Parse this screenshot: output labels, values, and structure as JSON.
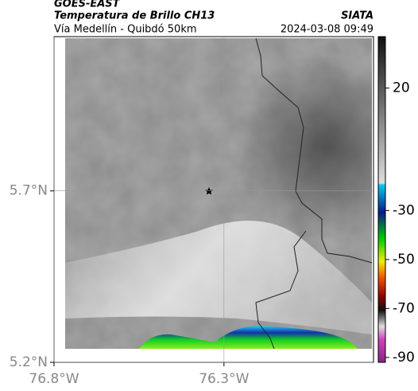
{
  "header": {
    "source": "GOES-EAST",
    "title": "Temperatura de Brillo CH13",
    "brand": "SIATA",
    "route": "Vía Medellín - Quibdó 50km",
    "timestamp": "2024-03-08 09:49"
  },
  "map": {
    "xlim": [
      -76.8,
      -75.86
    ],
    "ylim": [
      5.2,
      6.15
    ],
    "xticks": [
      {
        "value": -76.8,
        "label": "76.8°W"
      },
      {
        "value": -76.3,
        "label": "76.3°W"
      }
    ],
    "yticks": [
      {
        "value": 5.7,
        "label": "5.7°N"
      },
      {
        "value": 5.2,
        "label": "5.2°N"
      }
    ]
  },
  "colorbar": {
    "lim": [
      -92,
      41
    ],
    "ticks": [
      20,
      -30,
      -50,
      -70,
      -90
    ]
  }
}
